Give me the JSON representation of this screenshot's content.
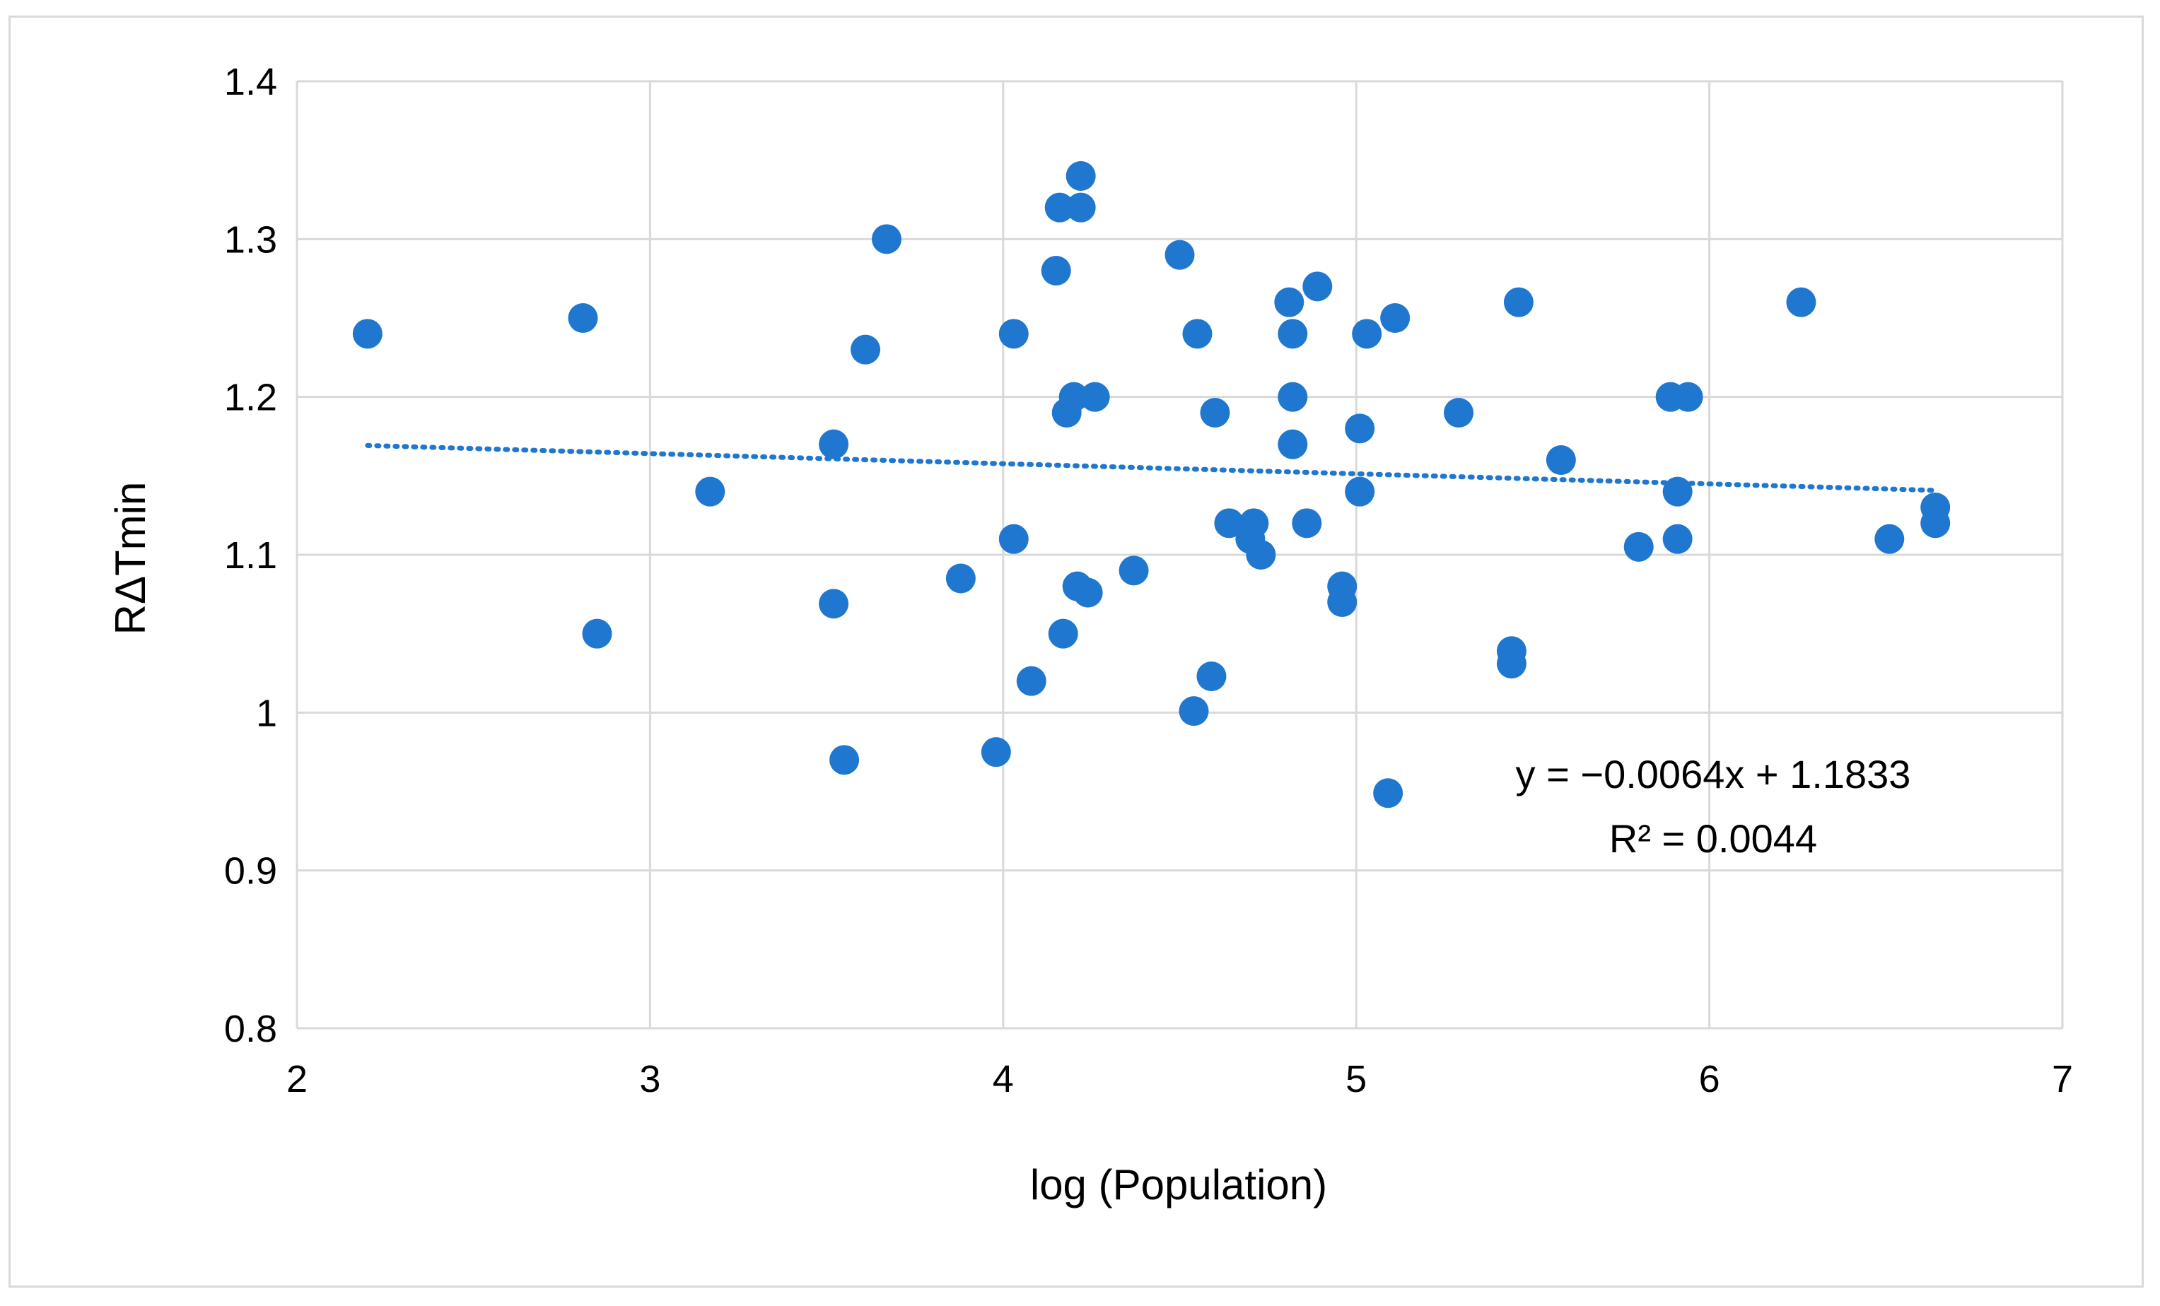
{
  "chart_data": {
    "type": "scatter",
    "title": "",
    "xlabel": "log (Population)",
    "ylabel": "RΔTmin",
    "xlim": [
      2,
      7
    ],
    "ylim": [
      0.8,
      1.4
    ],
    "xticks": [
      2,
      3,
      4,
      5,
      6,
      7
    ],
    "xtick_labels": [
      "2",
      "3",
      "4",
      "5",
      "6",
      "7"
    ],
    "yticks": [
      0.8,
      0.9,
      1.0,
      1.1,
      1.2,
      1.3,
      1.4
    ],
    "ytick_labels": [
      "0.8",
      "0.9",
      "1",
      "1.1",
      "1.2",
      "1.3",
      "1.4"
    ],
    "grid": true,
    "point_color": "#1f77d0",
    "trendline_color": "#1f77d0",
    "series": [
      {
        "name": "RΔTmin",
        "points": [
          [
            2.2,
            1.24
          ],
          [
            2.81,
            1.25
          ],
          [
            2.85,
            1.05
          ],
          [
            3.17,
            1.14
          ],
          [
            3.52,
            1.17
          ],
          [
            3.52,
            1.069
          ],
          [
            3.55,
            0.97
          ],
          [
            3.61,
            1.23
          ],
          [
            3.67,
            1.3
          ],
          [
            3.88,
            1.085
          ],
          [
            3.98,
            0.975
          ],
          [
            4.03,
            1.24
          ],
          [
            4.03,
            1.11
          ],
          [
            4.08,
            1.02
          ],
          [
            4.15,
            1.28
          ],
          [
            4.16,
            1.32
          ],
          [
            4.17,
            1.05
          ],
          [
            4.18,
            1.19
          ],
          [
            4.2,
            1.2
          ],
          [
            4.21,
            1.08
          ],
          [
            4.22,
            1.34
          ],
          [
            4.22,
            1.32
          ],
          [
            4.24,
            1.076
          ],
          [
            4.26,
            1.2
          ],
          [
            4.37,
            1.09
          ],
          [
            4.5,
            1.29
          ],
          [
            4.54,
            1.001
          ],
          [
            4.55,
            1.24
          ],
          [
            4.59,
            1.023
          ],
          [
            4.6,
            1.19
          ],
          [
            4.64,
            1.12
          ],
          [
            4.7,
            1.11
          ],
          [
            4.71,
            1.12
          ],
          [
            4.73,
            1.1
          ],
          [
            4.81,
            1.26
          ],
          [
            4.82,
            1.24
          ],
          [
            4.82,
            1.2
          ],
          [
            4.82,
            1.17
          ],
          [
            4.86,
            1.12
          ],
          [
            4.89,
            1.27
          ],
          [
            4.96,
            1.08
          ],
          [
            4.96,
            1.07
          ],
          [
            5.01,
            1.18
          ],
          [
            5.01,
            1.14
          ],
          [
            5.03,
            1.24
          ],
          [
            5.09,
            0.949
          ],
          [
            5.11,
            1.25
          ],
          [
            5.29,
            1.19
          ],
          [
            5.44,
            1.039
          ],
          [
            5.44,
            1.031
          ],
          [
            5.46,
            1.26
          ],
          [
            5.58,
            1.16
          ],
          [
            5.8,
            1.105
          ],
          [
            5.89,
            1.2
          ],
          [
            5.91,
            1.14
          ],
          [
            5.91,
            1.11
          ],
          [
            5.94,
            1.2
          ],
          [
            6.26,
            1.26
          ],
          [
            6.51,
            1.11
          ],
          [
            6.64,
            1.13
          ],
          [
            6.64,
            1.12
          ]
        ]
      }
    ],
    "trendline": {
      "type": "linear",
      "slope": -0.0064,
      "intercept": 1.1833,
      "x_range": [
        2.2,
        6.64
      ]
    },
    "annotations": {
      "equation": "y = −0.0064x + 1.1833",
      "r_squared": "R² = 0.0044"
    }
  }
}
